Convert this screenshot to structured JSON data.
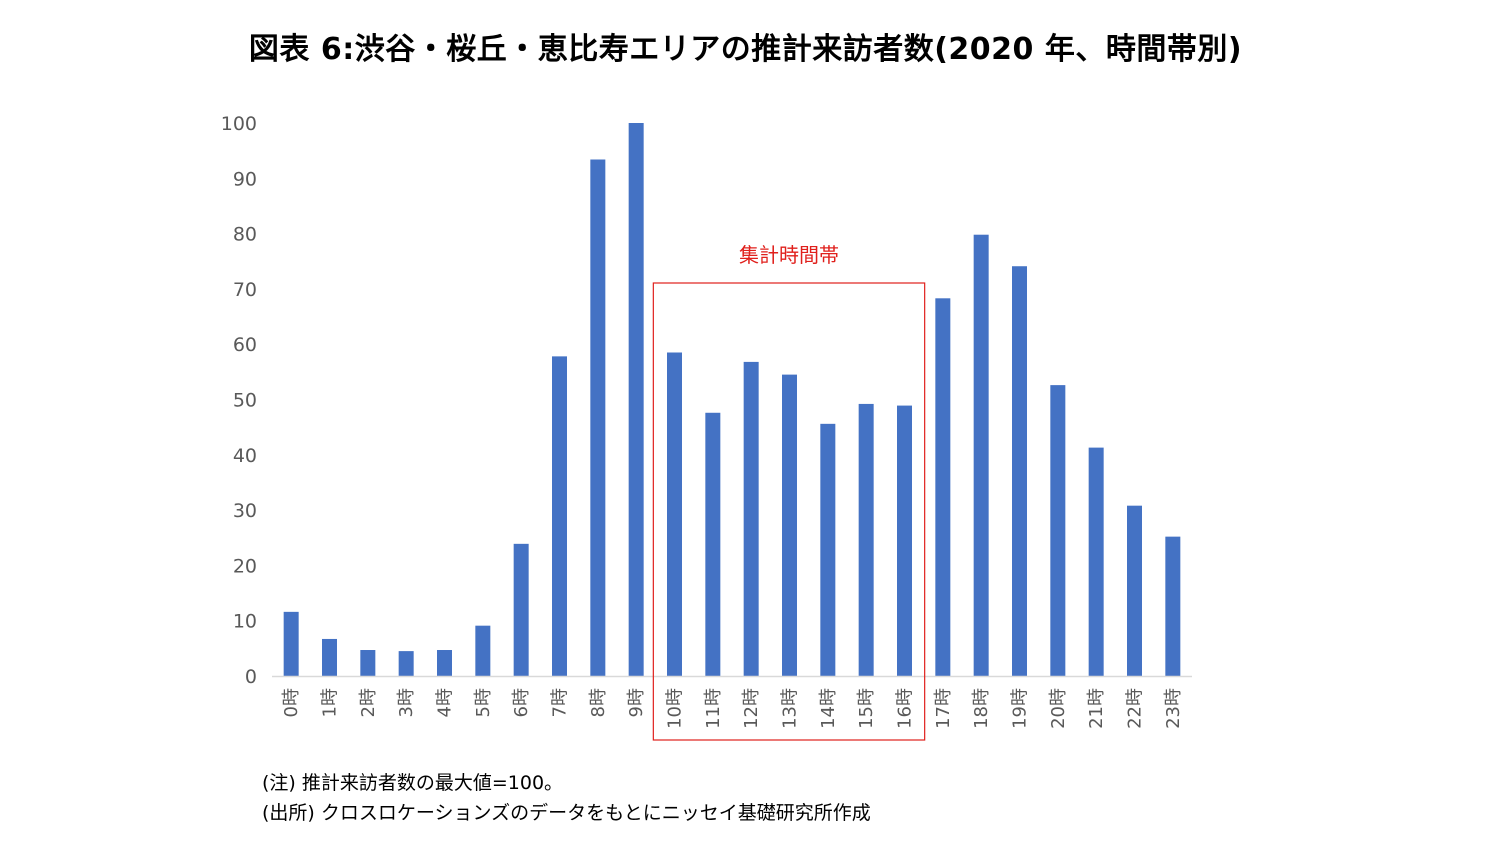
{
  "title": "図表 6:渋谷・桜丘・恵比寿エリアの推計来訪者数(2020 年、時間帯別)",
  "notes": {
    "note": "(注) 推計来訪者数の最大値=100。",
    "source": "(出所) クロスロケーションズのデータをもとにニッセイ基礎研究所作成"
  },
  "chart_data": {
    "type": "bar",
    "title": "図表 6:渋谷・桜丘・恵比寿エリアの推計来訪者数(2020 年、時間帯別)",
    "xlabel": "",
    "ylabel": "",
    "ylim": [
      0,
      100
    ],
    "yticks": [
      0,
      10,
      20,
      30,
      40,
      50,
      60,
      70,
      80,
      90,
      100
    ],
    "grid": false,
    "categories": [
      "0時",
      "1時",
      "2時",
      "3時",
      "4時",
      "5時",
      "6時",
      "7時",
      "8時",
      "9時",
      "10時",
      "11時",
      "12時",
      "13時",
      "14時",
      "15時",
      "16時",
      "17時",
      "18時",
      "19時",
      "20時",
      "21時",
      "22時",
      "23時"
    ],
    "values": [
      11.6,
      6.7,
      4.7,
      4.5,
      4.7,
      9.1,
      23.9,
      57.8,
      93.4,
      100,
      58.5,
      47.6,
      56.8,
      54.5,
      45.6,
      49.2,
      48.9,
      68.3,
      79.8,
      74.1,
      52.6,
      41.3,
      30.8,
      25.2
    ],
    "bar_color": "#4472C4",
    "annotation": {
      "label": "集計時間帯",
      "from_category": "10時",
      "to_category": "16時",
      "color": "#E0201C"
    }
  }
}
